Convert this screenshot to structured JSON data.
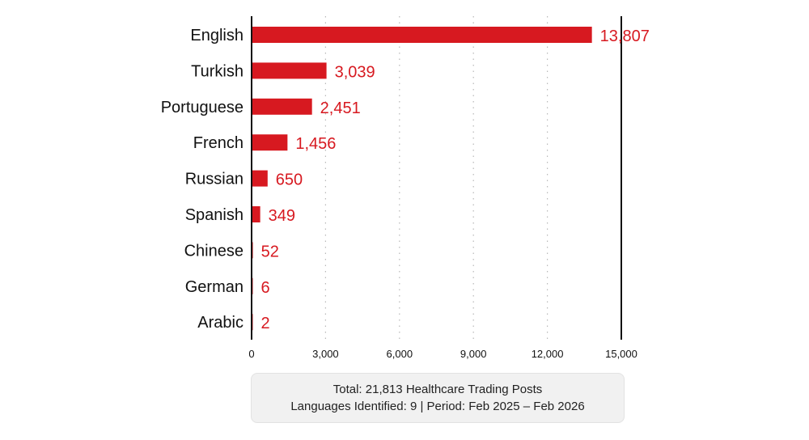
{
  "chart_data": {
    "type": "bar",
    "orientation": "horizontal",
    "categories": [
      "English",
      "Turkish",
      "Portuguese",
      "French",
      "Russian",
      "Spanish",
      "Chinese",
      "German",
      "Arabic"
    ],
    "values": [
      13807,
      3039,
      2451,
      1456,
      650,
      349,
      52,
      6,
      2
    ],
    "value_labels": [
      "13,807",
      "3,039",
      "2,451",
      "1,456",
      "650",
      "349",
      "52",
      "6",
      "2"
    ],
    "xlim": [
      0,
      15000
    ],
    "xticks": [
      0,
      3000,
      6000,
      9000,
      12000,
      15000
    ],
    "xtick_labels": [
      "0",
      "3,000",
      "6,000",
      "9,000",
      "12,000",
      "15,000"
    ],
    "grid": "vertical dotted",
    "title": "",
    "xlabel": "",
    "ylabel": ""
  },
  "colors": {
    "bar": "#d71920",
    "value_text": "#d71920",
    "axis": "#111111",
    "grid": "#b8b8b8"
  },
  "summary": {
    "line1": "Total: 21,813 Healthcare Trading Posts",
    "line2": "Languages Identified: 9 | Period: Feb 2025 – Feb 2026"
  }
}
